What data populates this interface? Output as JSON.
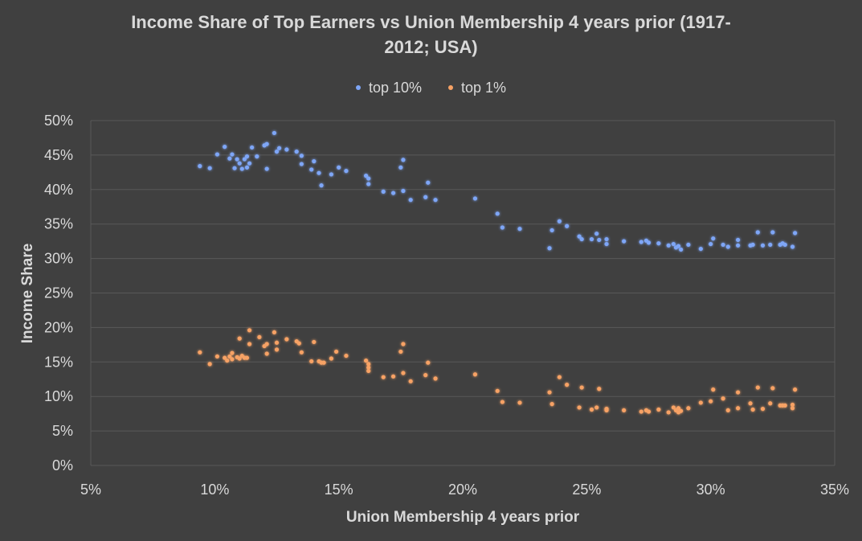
{
  "chart": {
    "title_line1": "Income Share of Top Earners vs Union Membership 4 years prior (1917-",
    "title_line2": "2012; USA)"
  },
  "colors": {
    "background": "#404040",
    "gridline": "#595959",
    "text": "#d9d9d9",
    "top10": "#7ea6f7",
    "top1": "#f7a265"
  },
  "chart_data": {
    "type": "scatter",
    "title": "Income Share of Top Earners vs Union Membership 4 years prior (1917-2012; USA)",
    "xlabel": "Union Membership 4 years prior",
    "ylabel": "Income Share",
    "xlim": [
      0.05,
      0.35
    ],
    "ylim": [
      0,
      0.5
    ],
    "x_ticks": [
      0.05,
      0.1,
      0.15,
      0.2,
      0.25,
      0.3,
      0.35
    ],
    "x_tick_labels": [
      "5%",
      "10%",
      "15%",
      "20%",
      "25%",
      "30%",
      "35%"
    ],
    "y_ticks": [
      0,
      0.05,
      0.1,
      0.15,
      0.2,
      0.25,
      0.3,
      0.35,
      0.4,
      0.45,
      0.5
    ],
    "y_tick_labels": [
      "0%",
      "5%",
      "10%",
      "15%",
      "20%",
      "25%",
      "30%",
      "35%",
      "40%",
      "45%",
      "50%"
    ],
    "grid": "horizontal",
    "legend_position": "top",
    "series": [
      {
        "name": "top 10%",
        "color": "#7ea6f7",
        "points": [
          [
            0.094,
            0.434
          ],
          [
            0.098,
            0.431
          ],
          [
            0.101,
            0.451
          ],
          [
            0.104,
            0.462
          ],
          [
            0.106,
            0.445
          ],
          [
            0.107,
            0.451
          ],
          [
            0.108,
            0.431
          ],
          [
            0.109,
            0.444
          ],
          [
            0.11,
            0.438
          ],
          [
            0.111,
            0.43
          ],
          [
            0.112,
            0.444
          ],
          [
            0.113,
            0.448
          ],
          [
            0.113,
            0.432
          ],
          [
            0.114,
            0.438
          ],
          [
            0.115,
            0.461
          ],
          [
            0.117,
            0.448
          ],
          [
            0.12,
            0.464
          ],
          [
            0.121,
            0.466
          ],
          [
            0.121,
            0.43
          ],
          [
            0.124,
            0.482
          ],
          [
            0.125,
            0.455
          ],
          [
            0.126,
            0.46
          ],
          [
            0.129,
            0.458
          ],
          [
            0.133,
            0.455
          ],
          [
            0.135,
            0.449
          ],
          [
            0.135,
            0.437
          ],
          [
            0.139,
            0.429
          ],
          [
            0.14,
            0.441
          ],
          [
            0.142,
            0.424
          ],
          [
            0.143,
            0.406
          ],
          [
            0.147,
            0.422
          ],
          [
            0.15,
            0.432
          ],
          [
            0.153,
            0.427
          ],
          [
            0.161,
            0.42
          ],
          [
            0.162,
            0.416
          ],
          [
            0.162,
            0.408
          ],
          [
            0.168,
            0.397
          ],
          [
            0.172,
            0.395
          ],
          [
            0.175,
            0.432
          ],
          [
            0.176,
            0.443
          ],
          [
            0.176,
            0.398
          ],
          [
            0.179,
            0.385
          ],
          [
            0.185,
            0.389
          ],
          [
            0.186,
            0.41
          ],
          [
            0.189,
            0.385
          ],
          [
            0.205,
            0.387
          ],
          [
            0.214,
            0.365
          ],
          [
            0.216,
            0.345
          ],
          [
            0.223,
            0.343
          ],
          [
            0.235,
            0.315
          ],
          [
            0.236,
            0.341
          ],
          [
            0.239,
            0.354
          ],
          [
            0.242,
            0.347
          ],
          [
            0.247,
            0.332
          ],
          [
            0.248,
            0.328
          ],
          [
            0.252,
            0.328
          ],
          [
            0.254,
            0.336
          ],
          [
            0.255,
            0.327
          ],
          [
            0.258,
            0.328
          ],
          [
            0.258,
            0.321
          ],
          [
            0.265,
            0.325
          ],
          [
            0.272,
            0.324
          ],
          [
            0.274,
            0.326
          ],
          [
            0.275,
            0.323
          ],
          [
            0.279,
            0.322
          ],
          [
            0.283,
            0.319
          ],
          [
            0.285,
            0.321
          ],
          [
            0.286,
            0.316
          ],
          [
            0.287,
            0.318
          ],
          [
            0.288,
            0.313
          ],
          [
            0.291,
            0.32
          ],
          [
            0.296,
            0.314
          ],
          [
            0.3,
            0.321
          ],
          [
            0.301,
            0.329
          ],
          [
            0.305,
            0.32
          ],
          [
            0.307,
            0.317
          ],
          [
            0.311,
            0.327
          ],
          [
            0.311,
            0.319
          ],
          [
            0.316,
            0.319
          ],
          [
            0.317,
            0.32
          ],
          [
            0.319,
            0.338
          ],
          [
            0.321,
            0.319
          ],
          [
            0.324,
            0.32
          ],
          [
            0.325,
            0.338
          ],
          [
            0.328,
            0.32
          ],
          [
            0.329,
            0.322
          ],
          [
            0.33,
            0.32
          ],
          [
            0.333,
            0.317
          ],
          [
            0.334,
            0.337
          ]
        ]
      },
      {
        "name": "top 1%",
        "color": "#f7a265",
        "points": [
          [
            0.094,
            0.164
          ],
          [
            0.098,
            0.147
          ],
          [
            0.101,
            0.158
          ],
          [
            0.104,
            0.156
          ],
          [
            0.105,
            0.152
          ],
          [
            0.106,
            0.158
          ],
          [
            0.107,
            0.163
          ],
          [
            0.107,
            0.154
          ],
          [
            0.109,
            0.157
          ],
          [
            0.11,
            0.184
          ],
          [
            0.11,
            0.155
          ],
          [
            0.111,
            0.159
          ],
          [
            0.112,
            0.156
          ],
          [
            0.113,
            0.156
          ],
          [
            0.114,
            0.176
          ],
          [
            0.114,
            0.196
          ],
          [
            0.118,
            0.186
          ],
          [
            0.12,
            0.173
          ],
          [
            0.121,
            0.176
          ],
          [
            0.121,
            0.162
          ],
          [
            0.124,
            0.193
          ],
          [
            0.125,
            0.178
          ],
          [
            0.125,
            0.168
          ],
          [
            0.129,
            0.183
          ],
          [
            0.133,
            0.18
          ],
          [
            0.134,
            0.177
          ],
          [
            0.135,
            0.164
          ],
          [
            0.139,
            0.151
          ],
          [
            0.14,
            0.179
          ],
          [
            0.142,
            0.151
          ],
          [
            0.143,
            0.149
          ],
          [
            0.144,
            0.149
          ],
          [
            0.147,
            0.155
          ],
          [
            0.149,
            0.165
          ],
          [
            0.153,
            0.159
          ],
          [
            0.161,
            0.152
          ],
          [
            0.162,
            0.147
          ],
          [
            0.162,
            0.142
          ],
          [
            0.162,
            0.137
          ],
          [
            0.168,
            0.128
          ],
          [
            0.172,
            0.129
          ],
          [
            0.175,
            0.165
          ],
          [
            0.176,
            0.176
          ],
          [
            0.176,
            0.134
          ],
          [
            0.179,
            0.122
          ],
          [
            0.185,
            0.131
          ],
          [
            0.186,
            0.149
          ],
          [
            0.189,
            0.126
          ],
          [
            0.205,
            0.132
          ],
          [
            0.214,
            0.108
          ],
          [
            0.216,
            0.092
          ],
          [
            0.223,
            0.091
          ],
          [
            0.235,
            0.106
          ],
          [
            0.236,
            0.089
          ],
          [
            0.239,
            0.128
          ],
          [
            0.242,
            0.117
          ],
          [
            0.247,
            0.084
          ],
          [
            0.248,
            0.113
          ],
          [
            0.252,
            0.081
          ],
          [
            0.254,
            0.084
          ],
          [
            0.255,
            0.111
          ],
          [
            0.258,
            0.082
          ],
          [
            0.258,
            0.08
          ],
          [
            0.265,
            0.08
          ],
          [
            0.272,
            0.078
          ],
          [
            0.274,
            0.08
          ],
          [
            0.275,
            0.078
          ],
          [
            0.279,
            0.081
          ],
          [
            0.283,
            0.077
          ],
          [
            0.285,
            0.084
          ],
          [
            0.286,
            0.08
          ],
          [
            0.287,
            0.077
          ],
          [
            0.287,
            0.083
          ],
          [
            0.288,
            0.079
          ],
          [
            0.291,
            0.083
          ],
          [
            0.296,
            0.091
          ],
          [
            0.3,
            0.093
          ],
          [
            0.301,
            0.11
          ],
          [
            0.305,
            0.097
          ],
          [
            0.307,
            0.08
          ],
          [
            0.311,
            0.106
          ],
          [
            0.311,
            0.083
          ],
          [
            0.316,
            0.09
          ],
          [
            0.317,
            0.081
          ],
          [
            0.319,
            0.113
          ],
          [
            0.321,
            0.082
          ],
          [
            0.324,
            0.09
          ],
          [
            0.325,
            0.112
          ],
          [
            0.328,
            0.087
          ],
          [
            0.329,
            0.087
          ],
          [
            0.33,
            0.087
          ],
          [
            0.333,
            0.088
          ],
          [
            0.333,
            0.083
          ],
          [
            0.334,
            0.11
          ]
        ]
      }
    ]
  }
}
